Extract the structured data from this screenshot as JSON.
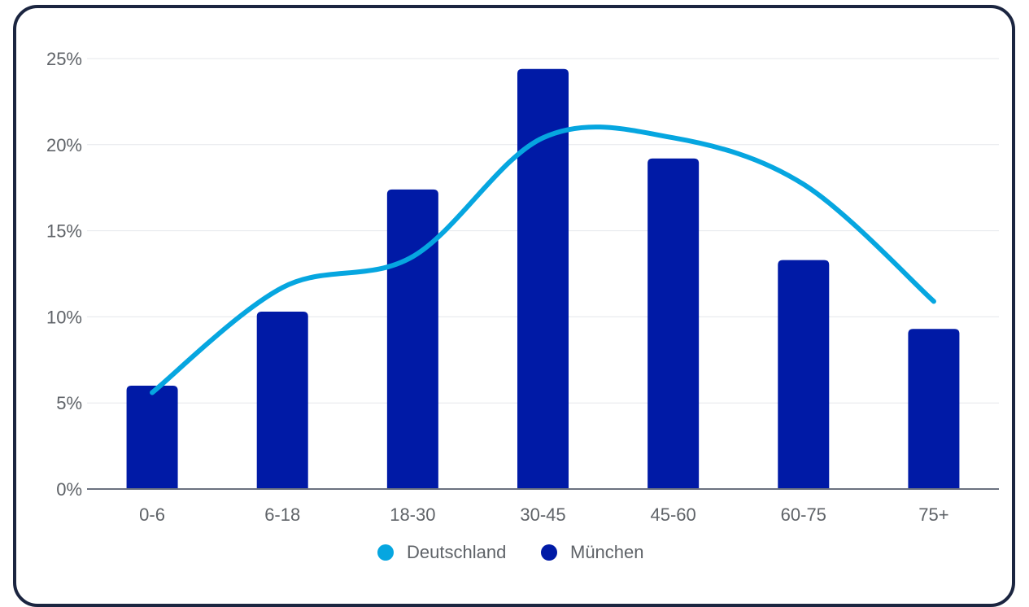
{
  "chart_data": {
    "type": "bar",
    "categories": [
      "0-6",
      "6-18",
      "18-30",
      "30-45",
      "45-60",
      "60-75",
      "75+"
    ],
    "series": [
      {
        "name": "München",
        "type": "bar",
        "color": "#001aa6",
        "values": [
          6.0,
          10.3,
          17.4,
          24.4,
          19.2,
          13.3,
          9.3
        ]
      },
      {
        "name": "Deutschland",
        "type": "line",
        "color": "#06a6e0",
        "values": [
          5.6,
          11.7,
          13.5,
          20.4,
          20.4,
          17.7,
          10.9
        ]
      }
    ],
    "y_ticks": [
      "0%",
      "5%",
      "10%",
      "15%",
      "20%",
      "25%"
    ],
    "ylim": [
      0,
      25
    ],
    "legend": {
      "placement": "bottom",
      "entries": [
        "Deutschland",
        "München"
      ]
    },
    "grid": true
  }
}
